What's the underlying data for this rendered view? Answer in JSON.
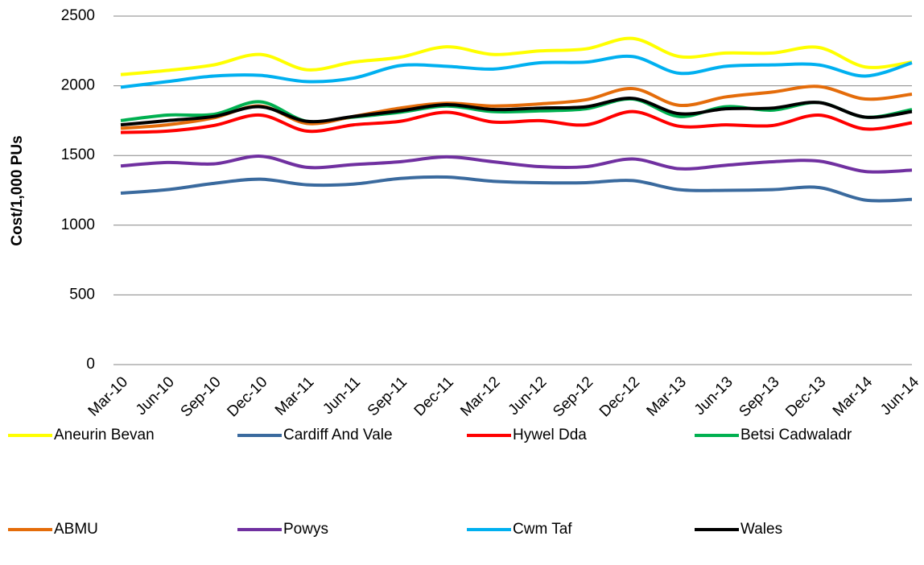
{
  "chart_data": {
    "type": "line",
    "y_label": "Cost/1,000 PUs",
    "categories": [
      "Mar-10",
      "Jun-10",
      "Sep-10",
      "Dec-10",
      "Mar-11",
      "Jun-11",
      "Sep-11",
      "Dec-11",
      "Mar-12",
      "Jun-12",
      "Sep-12",
      "Dec-12",
      "Mar-13",
      "Jun-13",
      "Sep-13",
      "Dec-13",
      "Mar-14",
      "Jun-14"
    ],
    "ylim": [
      0,
      2500
    ],
    "yticks": [
      0,
      500,
      1000,
      1500,
      2000,
      2500
    ],
    "grid": true,
    "smooth": true,
    "legend": "bottom",
    "series": [
      {
        "name": "Aneurin Bevan",
        "color": "#ffff00",
        "values": [
          2080,
          2110,
          2150,
          2225,
          2115,
          2170,
          2205,
          2280,
          2225,
          2250,
          2265,
          2340,
          2210,
          2235,
          2235,
          2275,
          2135,
          2170
        ]
      },
      {
        "name": "Cardiff And Vale",
        "color": "#3a6a9e",
        "values": [
          1230,
          1255,
          1300,
          1330,
          1290,
          1295,
          1335,
          1345,
          1315,
          1305,
          1305,
          1320,
          1255,
          1250,
          1255,
          1270,
          1180,
          1185
        ]
      },
      {
        "name": "Hywel Dda",
        "color": "#ff0000",
        "values": [
          1665,
          1675,
          1715,
          1790,
          1675,
          1720,
          1745,
          1810,
          1740,
          1750,
          1720,
          1815,
          1710,
          1720,
          1715,
          1790,
          1690,
          1735
        ]
      },
      {
        "name": "Betsi Cadwaladr",
        "color": "#00b050",
        "values": [
          1750,
          1790,
          1795,
          1885,
          1745,
          1775,
          1810,
          1855,
          1815,
          1820,
          1835,
          1905,
          1780,
          1850,
          1825,
          1880,
          1775,
          1830
        ]
      },
      {
        "name": "ABMU",
        "color": "#e46c0a",
        "values": [
          1695,
          1720,
          1770,
          1855,
          1730,
          1780,
          1840,
          1875,
          1855,
          1870,
          1900,
          1980,
          1860,
          1920,
          1955,
          1995,
          1905,
          1940
        ]
      },
      {
        "name": "Powys",
        "color": "#7030a0",
        "values": [
          1425,
          1450,
          1440,
          1495,
          1415,
          1435,
          1455,
          1490,
          1455,
          1420,
          1420,
          1475,
          1405,
          1430,
          1455,
          1460,
          1385,
          1395
        ]
      },
      {
        "name": "Cwm Taf",
        "color": "#00b0f0",
        "values": [
          1990,
          2030,
          2070,
          2075,
          2030,
          2055,
          2145,
          2140,
          2120,
          2165,
          2170,
          2210,
          2090,
          2140,
          2150,
          2150,
          2070,
          2165
        ]
      },
      {
        "name": "Wales",
        "color": "#000000",
        "values": [
          1720,
          1750,
          1780,
          1850,
          1745,
          1780,
          1820,
          1865,
          1830,
          1840,
          1850,
          1910,
          1800,
          1835,
          1840,
          1880,
          1775,
          1815
        ]
      }
    ]
  }
}
